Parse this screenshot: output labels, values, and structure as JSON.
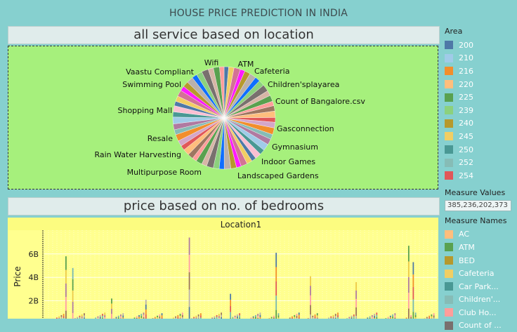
{
  "dashboard": {
    "title": "HOUSE PRICE PREDICTION IN INDIA"
  },
  "sheets": {
    "pie_title": "all service based on location",
    "bar_title": "price based on no. of bedrooms"
  },
  "legend": {
    "area_title": "Area",
    "area_items": [
      {
        "label": "200",
        "color": "#4e79a7"
      },
      {
        "label": "210",
        "color": "#a0cbe8"
      },
      {
        "label": "216",
        "color": "#f28e2b"
      },
      {
        "label": "220",
        "color": "#ffbe7d"
      },
      {
        "label": "225",
        "color": "#59a14f"
      },
      {
        "label": "239",
        "color": "#8cd17d"
      },
      {
        "label": "240",
        "color": "#b6992d"
      },
      {
        "label": "245",
        "color": "#f1ce63"
      },
      {
        "label": "250",
        "color": "#499894"
      },
      {
        "label": "252",
        "color": "#86bcb6"
      },
      {
        "label": "254",
        "color": "#e15759"
      }
    ],
    "measure_values_title": "Measure Values",
    "measure_values_value": "385,236,202,373",
    "measure_names_title": "Measure Names",
    "measure_names_items": [
      {
        "label": "AC",
        "color": "#ffbe7d"
      },
      {
        "label": "ATM",
        "color": "#59a14f"
      },
      {
        "label": "BED",
        "color": "#b6992d"
      },
      {
        "label": "Cafeteria",
        "color": "#f1ce63"
      },
      {
        "label": "Car Park...",
        "color": "#499894"
      },
      {
        "label": "Children'...",
        "color": "#86bcb6"
      },
      {
        "label": "Club Ho...",
        "color": "#ff9d9a"
      },
      {
        "label": "Count of ...",
        "color": "#79706e"
      }
    ]
  },
  "pie_labels": {
    "wifi": "Wifi",
    "atm": "ATM",
    "cafeteria": "Cafeteria",
    "vaastu": "Vaastu Compliant",
    "children": "Children'splayarea",
    "swimming": "Swimming Pool",
    "count": "Count of Bangalore.csv",
    "shopping": "Shopping Mall",
    "gas": "Gasconnection",
    "resale": "Resale",
    "gym": "Gymnasium",
    "rain": "Rain Water Harvesting",
    "indoor": "Indoor Games",
    "multi": "Multipurpose Room",
    "landscaped": "Landscaped Gardens"
  },
  "chart_data": [
    {
      "type": "pie",
      "title": "all service based on location",
      "categories": [
        "Wifi",
        "ATM",
        "Cafeteria",
        "Children'splayarea",
        "Count of Bangalore.csv",
        "Gasconnection",
        "Gymnasium",
        "Indoor Games",
        "Landscaped Gardens",
        "Multipurpose Room",
        "Rain Water Harvesting",
        "Resale",
        "Shopping Mall",
        "Swimming Pool",
        "Vaastu Compliant"
      ],
      "slice_colors": [
        "#4e79a7",
        "#a0cbe8",
        "#f28e2b",
        "#ffbe7d",
        "#59a14f",
        "#8cd17d",
        "#b6992d",
        "#f1ce63",
        "#499894",
        "#86bcb6",
        "#e15759",
        "#ff9d9a",
        "#79706e",
        "#bab0ac",
        "#d37295",
        "#fabfd2",
        "#b07aa1",
        "#d4a6c8",
        "#9d7660",
        "#d7b5a6",
        "#0e6eff",
        "#ff1aff"
      ],
      "slice_count": 56
    },
    {
      "type": "bar",
      "title": "price based on no. of bedrooms",
      "panel_header": "Location1",
      "ylabel": "Price",
      "yticks": [
        "0B",
        "2B",
        "4B",
        "6B"
      ],
      "ylim": [
        0,
        7.5
      ],
      "bar_count": 170,
      "tall_bars": [
        {
          "index": 8,
          "value": 5.8
        },
        {
          "index": 11,
          "value": 4.8
        },
        {
          "index": 28,
          "value": 2.2
        },
        {
          "index": 43,
          "value": 2.1
        },
        {
          "index": 62,
          "value": 7.4
        },
        {
          "index": 80,
          "value": 2.6
        },
        {
          "index": 100,
          "value": 6.1
        },
        {
          "index": 115,
          "value": 4.1
        },
        {
          "index": 135,
          "value": 3.6
        },
        {
          "index": 158,
          "value": 6.7
        },
        {
          "index": 160,
          "value": 5.3
        }
      ]
    }
  ]
}
